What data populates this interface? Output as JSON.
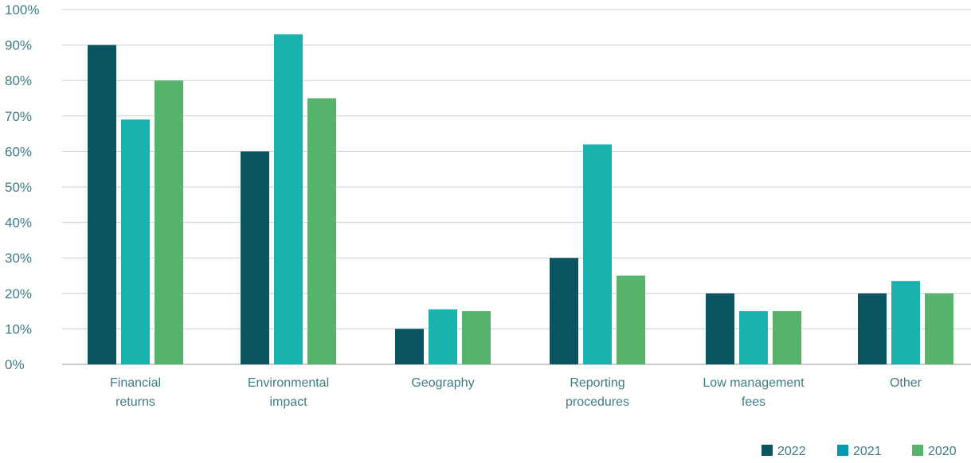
{
  "chart_data": {
    "type": "bar",
    "categories": [
      [
        "Financial",
        "returns"
      ],
      [
        "Environmental",
        "impact"
      ],
      [
        "Geography"
      ],
      [
        "Reporting",
        "procedures"
      ],
      [
        "Low management",
        "fees"
      ],
      [
        "Other"
      ]
    ],
    "series": [
      {
        "name": "2022",
        "color": "#0b5563",
        "values": [
          90,
          60,
          10,
          30,
          20,
          20
        ]
      },
      {
        "name": "2021",
        "color": "#1ab2ad",
        "values": [
          69,
          93,
          15.5,
          62,
          15,
          23.5
        ]
      },
      {
        "name": "2020",
        "color": "#56b36b",
        "values": [
          80,
          75,
          15,
          25,
          15,
          20
        ]
      }
    ],
    "y_ticks": [
      "0%",
      "10%",
      "20%",
      "30%",
      "40%",
      "50%",
      "60%",
      "70%",
      "80%",
      "90%",
      "100%"
    ],
    "ylim": [
      0,
      100
    ],
    "grid": true,
    "legend_position": "bottom-right",
    "legend_swatch_colors": [
      "#0b5563",
      "#0099b5",
      "#56b36b"
    ],
    "title": "",
    "xlabel": "",
    "ylabel": ""
  }
}
